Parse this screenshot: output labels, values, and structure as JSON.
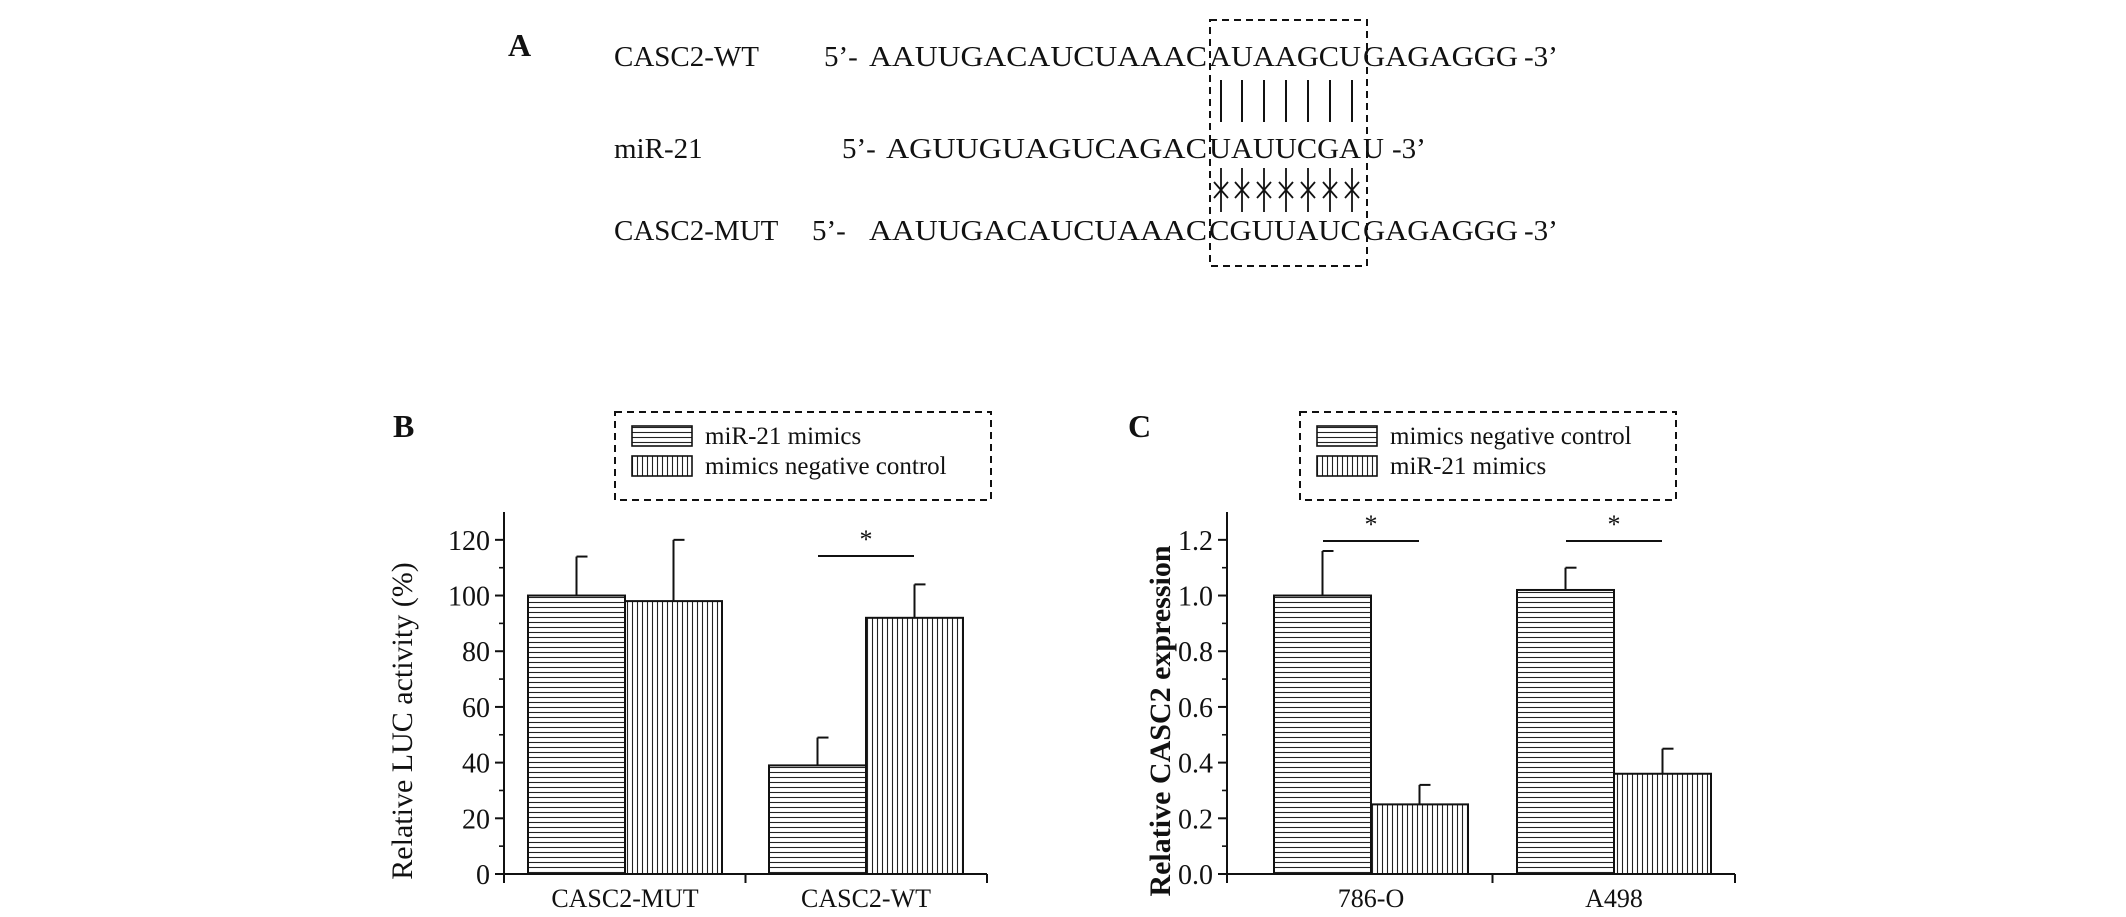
{
  "panel_a": {
    "label": "A",
    "rows": [
      {
        "name": "CASC2-WT",
        "prefix": "5’-",
        "seq_left": "AAUUGACAUCUAAAC",
        "seq_box": "AUAAGCU",
        "seq_right": "GAGAGGG",
        "suffix": "-3’"
      },
      {
        "name": "miR-21",
        "prefix": "5’-",
        "seq_left": "AGUUGUAGUCAGAC",
        "seq_box": "UAUUCGA",
        "seq_right": "U",
        "suffix": "-3’"
      },
      {
        "name": "CASC2-MUT",
        "prefix": "5’-",
        "seq_left": "AAUUGACAUCUAAAC",
        "seq_box": "CGUUAUC",
        "seq_right": "GAGAGGG",
        "suffix": "-3’"
      }
    ]
  },
  "chart_data": [
    {
      "panel": "B",
      "type": "bar",
      "categories": [
        "CASC2-MUT",
        "CASC2-WT"
      ],
      "series": [
        {
          "name": "miR-21 mimics",
          "pattern": "horizontal",
          "values": [
            100,
            39
          ],
          "errors": [
            14,
            10
          ]
        },
        {
          "name": "mimics negative control",
          "pattern": "vertical",
          "values": [
            98,
            92
          ],
          "errors": [
            22,
            12
          ]
        }
      ],
      "ylabel": "Relative LUC activity (%)",
      "xlabel": "",
      "ylim": [
        0,
        130
      ],
      "yticks": [
        0,
        20,
        40,
        60,
        80,
        100,
        120
      ],
      "legend": "top-right, dashed frame",
      "significance": [
        {
          "category": "CASC2-WT",
          "label": "*"
        }
      ]
    },
    {
      "panel": "C",
      "type": "bar",
      "categories": [
        "786-O",
        "A498"
      ],
      "series": [
        {
          "name": "mimics negative control",
          "pattern": "horizontal",
          "values": [
            1.0,
            1.02
          ],
          "errors": [
            0.16,
            0.08
          ]
        },
        {
          "name": "miR-21 mimics",
          "pattern": "vertical",
          "values": [
            0.25,
            0.36
          ],
          "errors": [
            0.07,
            0.09
          ]
        }
      ],
      "ylabel": "Relative CASC2 expression",
      "xlabel": "",
      "ylim": [
        0,
        1.3
      ],
      "yticks": [
        0.0,
        0.2,
        0.4,
        0.6,
        0.8,
        1.0,
        1.2
      ],
      "legend": "top, dashed frame",
      "significance": [
        {
          "category": "786-O",
          "label": "*"
        },
        {
          "category": "A498",
          "label": "*"
        }
      ]
    }
  ]
}
